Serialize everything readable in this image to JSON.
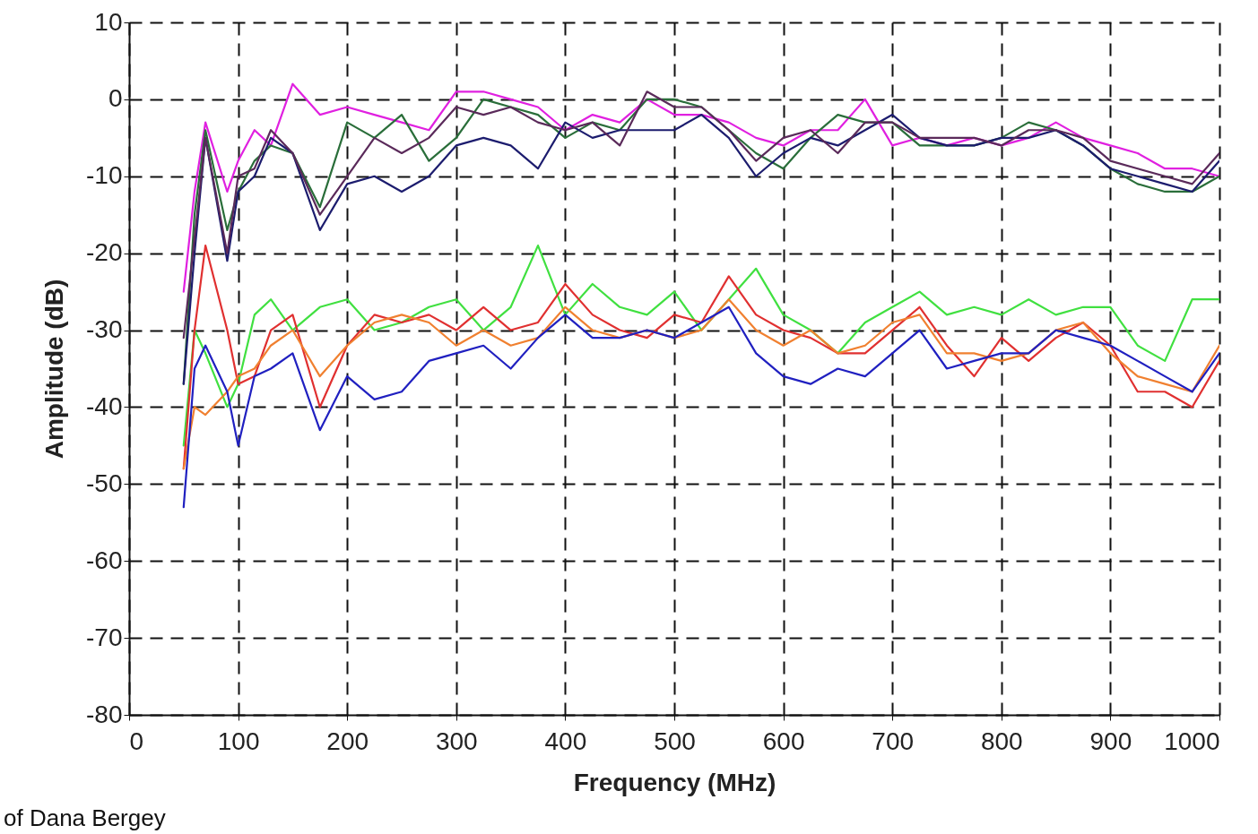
{
  "chart_data": {
    "type": "line",
    "xlabel": "Frequency (MHz)",
    "ylabel": "Amplitude (dB)",
    "annotations": [
      "of Dana Bergey"
    ],
    "x": [
      50,
      60,
      70,
      90,
      100,
      115,
      130,
      150,
      175,
      200,
      225,
      250,
      275,
      300,
      325,
      350,
      375,
      400,
      425,
      450,
      475,
      500,
      525,
      550,
      575,
      600,
      625,
      650,
      675,
      700,
      725,
      750,
      775,
      800,
      825,
      850,
      875,
      900,
      925,
      950,
      975,
      1000
    ],
    "xlim": [
      0,
      1000
    ],
    "xticks": [
      0,
      100,
      200,
      300,
      400,
      500,
      600,
      700,
      800,
      900,
      1000
    ],
    "ylim": [
      -80,
      10
    ],
    "yticks": [
      -80,
      -70,
      -60,
      -50,
      -40,
      -30,
      -20,
      -10,
      0,
      10
    ],
    "grid": true,
    "legend": false,
    "marker": "none",
    "line_style": "solid",
    "series": [
      {
        "color": "#e020e0",
        "values": [
          -25,
          -12,
          -3,
          -12,
          -8,
          -4,
          -6,
          2,
          -2,
          -1,
          -2,
          -3,
          -4,
          1,
          1,
          0,
          -1,
          -4,
          -2,
          -3,
          0,
          -2,
          -2,
          -3,
          -5,
          -6,
          -4,
          -4,
          0,
          -6,
          -5,
          -6,
          -5,
          -6,
          -5,
          -3,
          -5,
          -6,
          -7,
          -9,
          -9,
          -10
        ]
      },
      {
        "color": "#2a6e3a",
        "values": [
          -37,
          -15,
          -4,
          -17,
          -12,
          -8,
          -6,
          -7,
          -14,
          -3,
          -5,
          -2,
          -8,
          -5,
          0,
          -1,
          -2,
          -5,
          -3,
          -4,
          0,
          0,
          -1,
          -4,
          -7,
          -9,
          -5,
          -2,
          -3,
          -3,
          -6,
          -6,
          -6,
          -5,
          -3,
          -4,
          -6,
          -9,
          -11,
          -12,
          -12,
          -10
        ]
      },
      {
        "color": "#1c1c6e",
        "values": [
          -37,
          -20,
          -5,
          -21,
          -12,
          -10,
          -5,
          -7,
          -17,
          -11,
          -10,
          -12,
          -10,
          -6,
          -5,
          -6,
          -9,
          -3,
          -5,
          -4,
          -4,
          -4,
          -2,
          -5,
          -10,
          -7,
          -5,
          -6,
          -4,
          -2,
          -5,
          -6,
          -6,
          -5,
          -5,
          -4,
          -6,
          -9,
          -10,
          -11,
          -12,
          -8
        ]
      },
      {
        "color": "#5a2a5a",
        "values": [
          -31,
          -18,
          -5,
          -20,
          -10,
          -9,
          -4,
          -7,
          -15,
          -10,
          -5,
          -7,
          -5,
          -1,
          -2,
          -1,
          -3,
          -4,
          -3,
          -6,
          1,
          -1,
          -1,
          -4,
          -8,
          -5,
          -4,
          -7,
          -3,
          -3,
          -5,
          -5,
          -5,
          -6,
          -4,
          -4,
          -5,
          -8,
          -9,
          -10,
          -11,
          -7
        ]
      },
      {
        "color": "#40e040",
        "values": [
          -45,
          -30,
          -33,
          -40,
          -37,
          -28,
          -26,
          -30,
          -27,
          -26,
          -30,
          -29,
          -27,
          -26,
          -30,
          -27,
          -19,
          -28,
          -24,
          -27,
          -28,
          -25,
          -30,
          -26,
          -22,
          -28,
          -30,
          -33,
          -29,
          -27,
          -25,
          -28,
          -27,
          -28,
          -26,
          -28,
          -27,
          -27,
          -32,
          -34,
          -26,
          -26
        ]
      },
      {
        "color": "#e03030",
        "values": [
          -48,
          -30,
          -19,
          -30,
          -37,
          -36,
          -30,
          -28,
          -40,
          -32,
          -28,
          -29,
          -28,
          -30,
          -27,
          -30,
          -29,
          -24,
          -28,
          -30,
          -31,
          -28,
          -29,
          -23,
          -28,
          -30,
          -31,
          -33,
          -33,
          -30,
          -27,
          -32,
          -36,
          -31,
          -34,
          -31,
          -29,
          -32,
          -38,
          -38,
          -40,
          -34
        ]
      },
      {
        "color": "#f08030",
        "values": [
          -48,
          -40,
          -41,
          -38,
          -36,
          -35,
          -32,
          -30,
          -36,
          -32,
          -29,
          -28,
          -29,
          -32,
          -30,
          -32,
          -31,
          -27,
          -30,
          -31,
          -30,
          -31,
          -30,
          -26,
          -30,
          -32,
          -30,
          -33,
          -32,
          -29,
          -28,
          -33,
          -33,
          -34,
          -33,
          -30,
          -29,
          -33,
          -36,
          -37,
          -38,
          -32
        ]
      },
      {
        "color": "#2020c0",
        "values": [
          -53,
          -35,
          -32,
          -38,
          -45,
          -36,
          -35,
          -33,
          -43,
          -36,
          -39,
          -38,
          -34,
          -33,
          -32,
          -35,
          -31,
          -28,
          -31,
          -31,
          -30,
          -31,
          -29,
          -27,
          -33,
          -36,
          -37,
          -35,
          -36,
          -33,
          -30,
          -35,
          -34,
          -33,
          -33,
          -30,
          -31,
          -32,
          -34,
          -36,
          -38,
          -33
        ]
      }
    ]
  }
}
